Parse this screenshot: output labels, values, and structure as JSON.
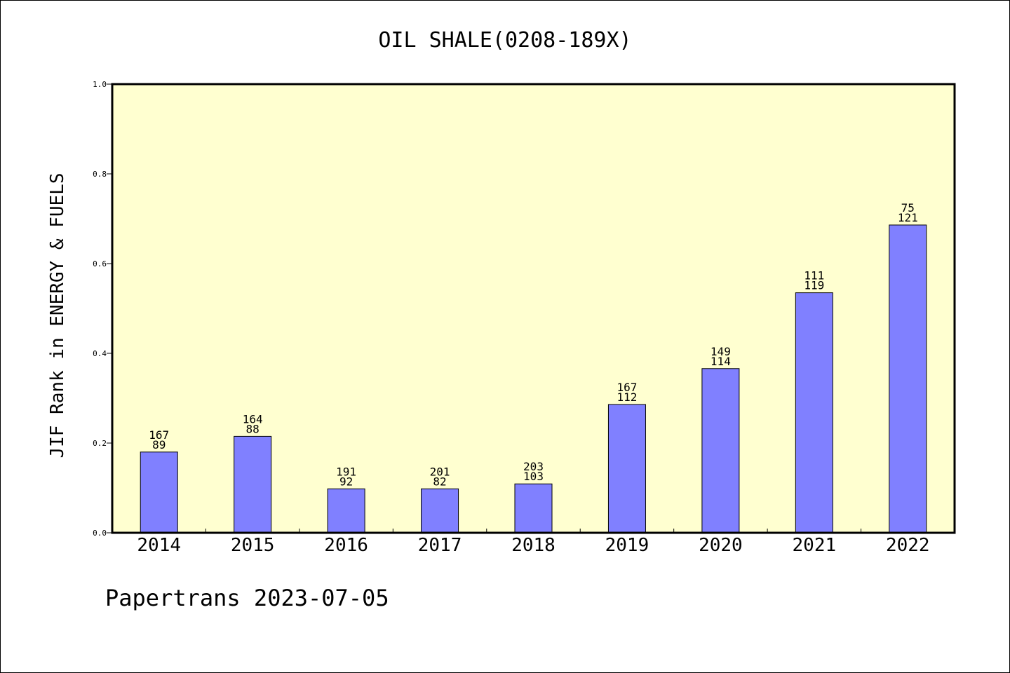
{
  "chart_data": {
    "type": "bar",
    "title": "OIL SHALE(0208-189X)",
    "xlabel": "",
    "ylabel": "JIF Rank in ENERGY & FUELS",
    "ylim": [
      0,
      1.0
    ],
    "yticks": [
      "0.0",
      "0.2",
      "0.4",
      "0.6",
      "0.8",
      "1.0"
    ],
    "categories": [
      "2014",
      "2015",
      "2016",
      "2017",
      "2018",
      "2019",
      "2020",
      "2021",
      "2022"
    ],
    "values": [
      0.18,
      0.215,
      0.098,
      0.098,
      0.109,
      0.286,
      0.366,
      0.535,
      0.686
    ],
    "label_top": [
      "167",
      "164",
      "191",
      "201",
      "203",
      "167",
      "149",
      "111",
      "75"
    ],
    "label_bottom": [
      "89",
      "88",
      "92",
      "82",
      "103",
      "112",
      "114",
      "119",
      "121"
    ],
    "grid": false,
    "legend": "none",
    "colors": {
      "bar": "#8080ff",
      "plot_background": "#ffffd0",
      "axis": "#000000"
    }
  },
  "footer": {
    "text": "Papertrans 2023-07-05"
  }
}
